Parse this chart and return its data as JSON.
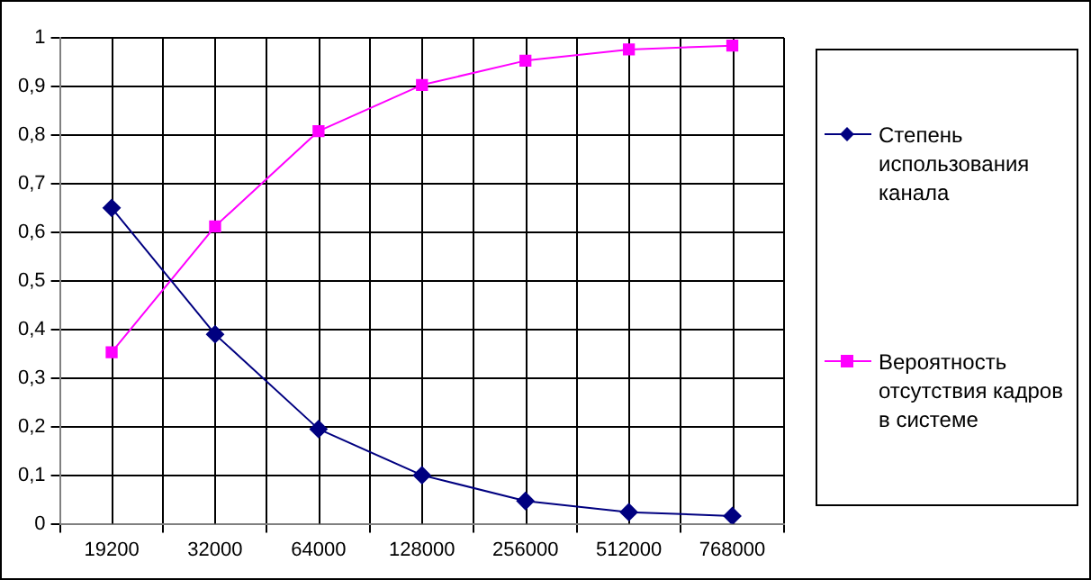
{
  "chart_data": {
    "type": "line",
    "categories": [
      "19200",
      "32000",
      "64000",
      "128000",
      "256000",
      "512000",
      "768000"
    ],
    "series": [
      {
        "name": "Степень использования канала",
        "color": "#000080",
        "marker": "diamond",
        "values": [
          0.65,
          0.39,
          0.195,
          0.1,
          0.047,
          0.024,
          0.016
        ]
      },
      {
        "name": "Вероятность отсутствия кадров в системе",
        "color": "#ff00ff",
        "marker": "square",
        "values": [
          0.353,
          0.612,
          0.808,
          0.903,
          0.953,
          0.976,
          0.984
        ]
      }
    ],
    "ylim": [
      0,
      1
    ],
    "yticks": [
      0,
      {
        "value": 0.1,
        "label": "0,1"
      },
      {
        "value": 0.2,
        "label": "0,2"
      },
      {
        "value": 0.3,
        "label": "0,3"
      },
      {
        "value": 0.4,
        "label": "0,4"
      },
      {
        "value": 0.5,
        "label": "0,5"
      },
      {
        "value": 0.6,
        "label": "0,6"
      },
      {
        "value": 0.7,
        "label": "0,7"
      },
      {
        "value": 0.8,
        "label": "0,8"
      },
      {
        "value": 0.9,
        "label": "0,9"
      },
      1
    ],
    "grid": true,
    "legend": "right"
  }
}
